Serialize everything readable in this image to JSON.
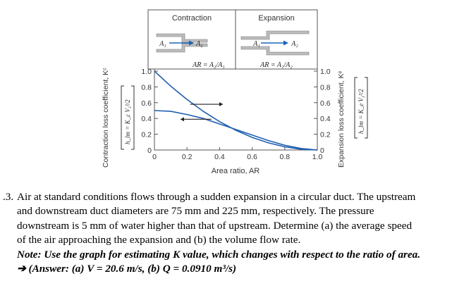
{
  "chart_data": {
    "type": "line",
    "title_left": "Contraction",
    "title_right": "Expansion",
    "left_diagram": {
      "in_label": "A₁",
      "out_label": "A₂",
      "ar_label": "AR = A₂/A₁"
    },
    "right_diagram": {
      "in_label": "A₁",
      "out_label": "A₂",
      "ar_label": "AR = A₁/A₂"
    },
    "xlabel": "Area ratio, AR",
    "xlim": [
      0,
      1
    ],
    "ylim": [
      0,
      1
    ],
    "xticks": [
      "0",
      "0.2",
      "0.4",
      "0.6",
      "0.8",
      "1.0"
    ],
    "yticks_left": [
      "0",
      "0.2",
      "0.4",
      "0.6",
      "0.8",
      "1.0"
    ],
    "yticks_right": [
      "0",
      "0.2",
      "0.4",
      "0.6",
      "0.8",
      "1.0"
    ],
    "ylabel_left": "Contraction loss coefficient, Kᶜ",
    "ylabel_left_formula": "h_lm = K_c V₂²/2",
    "ylabel_right": "Expansion loss coefficient, Kᵉ",
    "ylabel_right_formula": "h_lm = K_e V₁²/2",
    "series": [
      {
        "name": "Expansion",
        "axis": "right",
        "x": [
          0,
          0.1,
          0.2,
          0.3,
          0.4,
          0.5,
          0.6,
          0.7,
          0.8,
          0.9,
          1.0
        ],
        "y": [
          1.0,
          0.81,
          0.64,
          0.49,
          0.36,
          0.25,
          0.16,
          0.09,
          0.04,
          0.01,
          0.0
        ]
      },
      {
        "name": "Contraction",
        "axis": "left",
        "x": [
          0,
          0.1,
          0.2,
          0.3,
          0.4,
          0.5,
          0.6,
          0.7,
          0.8,
          0.9,
          1.0
        ],
        "y": [
          0.5,
          0.49,
          0.45,
          0.4,
          0.33,
          0.26,
          0.19,
          0.12,
          0.06,
          0.02,
          0.0
        ]
      }
    ],
    "arrows": [
      {
        "direction": "right",
        "at_y": 0.58,
        "x_from": 0.22,
        "x_to": 0.42
      },
      {
        "direction": "left",
        "at_y": 0.39,
        "x_from": 0.16,
        "x_to": 0.35
      }
    ]
  },
  "problem": {
    "number": ".3.",
    "lines": [
      "Air at standard conditions flows through a sudden expansion in a circular duct. The upstream",
      "and downstream duct diameters are 75 mm and 225 mm, respectively. The pressure",
      "downstream is 5 mm of water higher than that of upstream. Determine (a) the average speed",
      "of the air approaching the expansion and (b) the volume flow rate."
    ],
    "note": "Note: Use the graph for estimating K value, which changes with respect to the ratio of area.",
    "answer_arrow": "➔",
    "answer": "(Answer: (a) V = 20.6 m/s, (b) Q = 0.0910 m³/s)"
  }
}
